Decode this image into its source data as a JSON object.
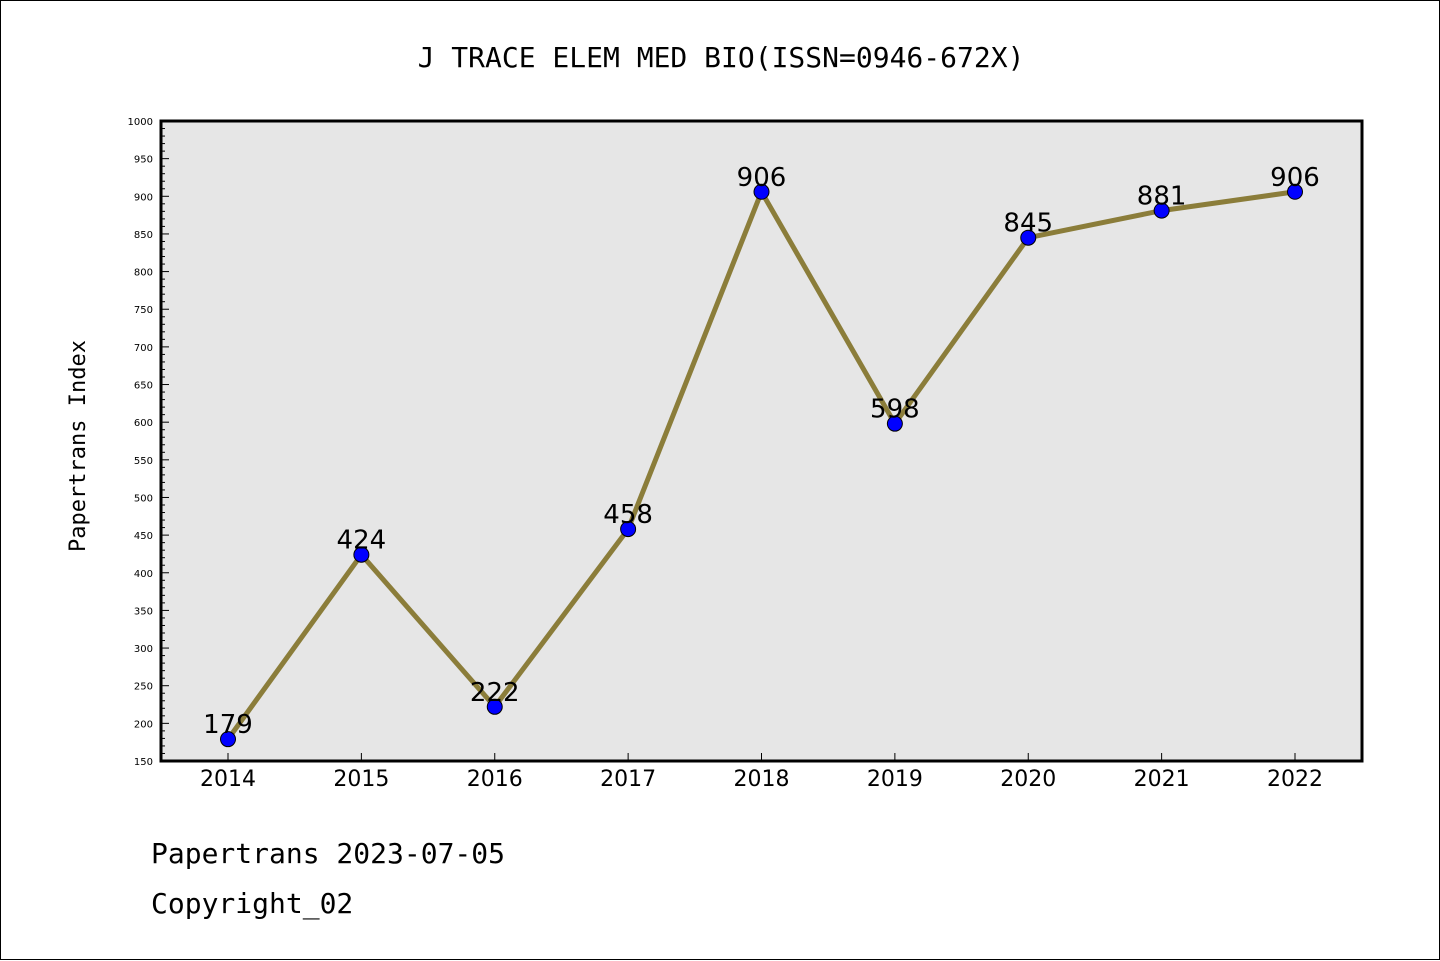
{
  "chart_data": {
    "type": "line",
    "title": "J TRACE ELEM MED BIO(ISSN=0946-672X)",
    "xlabel": "",
    "ylabel": "Papertrans Index",
    "categories": [
      "2014",
      "2015",
      "2016",
      "2017",
      "2018",
      "2019",
      "2020",
      "2021",
      "2022"
    ],
    "values": [
      179,
      424,
      222,
      458,
      906,
      598,
      845,
      881,
      906
    ],
    "ylim": [
      150,
      1000
    ],
    "ytick_step": 50,
    "grid": false,
    "colors": {
      "line": "#8b7d3a",
      "marker": "#0000ff",
      "plot_background": "#e6e6e6"
    }
  },
  "footer": {
    "line1": "Papertrans 2023-07-05",
    "line2": "Copyright_02"
  }
}
